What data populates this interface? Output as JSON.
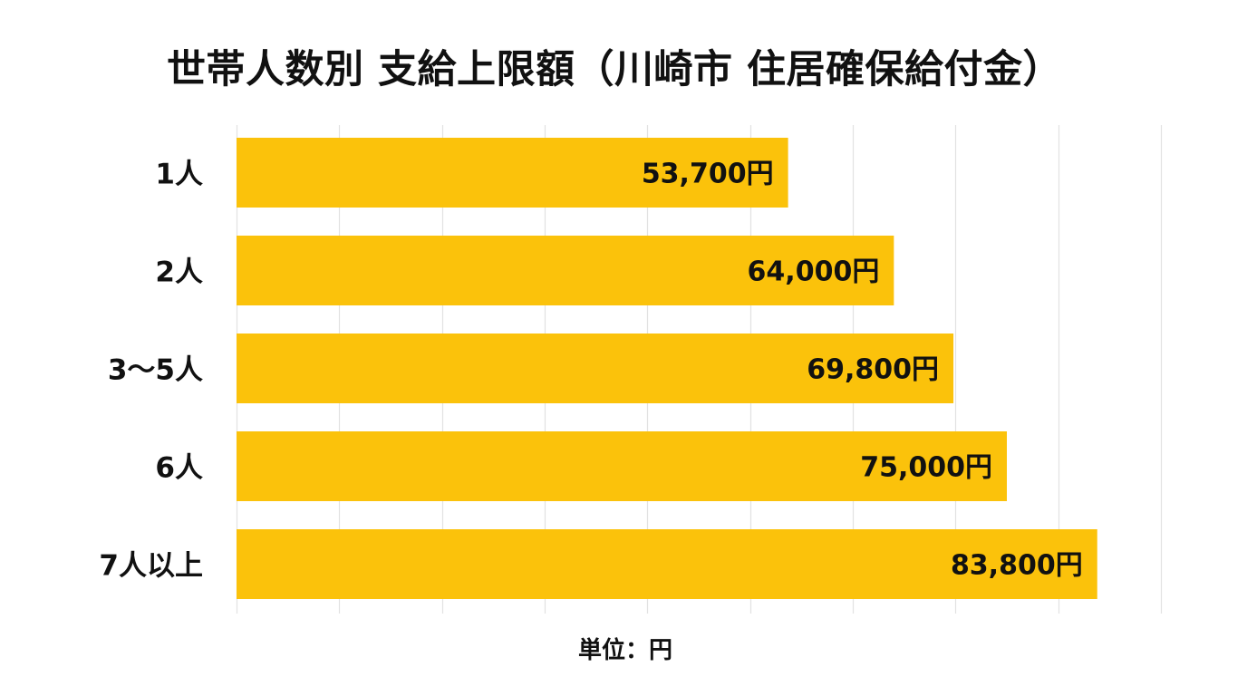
{
  "chart_data": {
    "type": "bar",
    "orientation": "horizontal",
    "title": "世帯人数別 支給上限額（川崎市 住居確保給付金）",
    "categories": [
      "1人",
      "2人",
      "3〜5人",
      "6人",
      "7人以上"
    ],
    "values": [
      53700,
      64000,
      69800,
      75000,
      83800
    ],
    "value_labels": [
      "53,700円",
      "64,000円",
      "69,800円",
      "75,000円",
      "83,800円"
    ],
    "xlim": [
      0,
      90000
    ],
    "grid": true,
    "legend": "none",
    "unit_note": "単位：円",
    "bar_color": "#FBC20B",
    "grid_color": "#E2E2E2"
  }
}
